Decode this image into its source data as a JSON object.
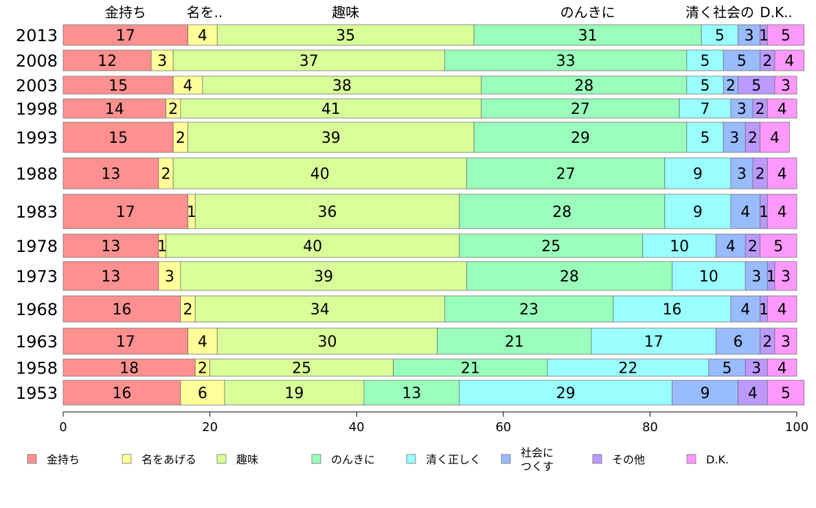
{
  "chart_data": {
    "type": "bar",
    "orientation": "horizontal",
    "stacked": true,
    "title": "",
    "xlabel": "",
    "ylabel": "",
    "xlim": [
      0,
      100
    ],
    "x_ticks": [
      "0",
      "20",
      "40",
      "60",
      "80",
      "100"
    ],
    "grid": false,
    "legend_position": "bottom",
    "categories": [
      "2013",
      "2008",
      "2003",
      "1998",
      "1993",
      "1988",
      "1983",
      "1978",
      "1973",
      "1968",
      "1963",
      "1958",
      "1953"
    ],
    "column_headers": [
      "金持ち",
      "名を..",
      "趣味",
      "",
      "のんきに",
      "",
      "清く社会の",
      "D.K.."
    ],
    "series": [
      {
        "name": "金持ち",
        "color": "#ff9090",
        "values": [
          17,
          12,
          15,
          14,
          15,
          13,
          17,
          13,
          13,
          16,
          17,
          18,
          16
        ]
      },
      {
        "name": "名をあげる",
        "color": "#ffff99",
        "values": [
          4,
          3,
          4,
          2,
          2,
          2,
          1,
          1,
          3,
          2,
          4,
          2,
          6
        ]
      },
      {
        "name": "趣味",
        "color": "#d9ff99",
        "values": [
          35,
          37,
          38,
          41,
          39,
          40,
          36,
          40,
          39,
          34,
          30,
          25,
          19
        ]
      },
      {
        "name": "のんきに",
        "color": "#99ffbb",
        "values": [
          31,
          33,
          28,
          27,
          29,
          27,
          28,
          25,
          28,
          23,
          21,
          21,
          13
        ]
      },
      {
        "name": "清く正しく",
        "color": "#99ffff",
        "values": [
          5,
          5,
          5,
          7,
          5,
          9,
          9,
          10,
          10,
          16,
          17,
          22,
          29
        ]
      },
      {
        "name": "社会につくす",
        "color": "#99bbff",
        "values": [
          3,
          5,
          2,
          3,
          3,
          3,
          4,
          4,
          3,
          4,
          6,
          5,
          9
        ]
      },
      {
        "name": "その他",
        "color": "#bb99ff",
        "values": [
          1,
          2,
          5,
          2,
          2,
          2,
          1,
          2,
          1,
          1,
          2,
          3,
          4
        ]
      },
      {
        "name": "D.K.",
        "color": "#ff99ff",
        "values": [
          5,
          4,
          3,
          4,
          4,
          4,
          4,
          5,
          3,
          4,
          3,
          4,
          5
        ]
      }
    ],
    "legend_items": [
      {
        "label": "金持ち",
        "color": "#ff9090"
      },
      {
        "label": "名をあげる",
        "color": "#ffff99"
      },
      {
        "label": "趣味",
        "color": "#d9ff99"
      },
      {
        "label": "のんきに",
        "color": "#99ffbb"
      },
      {
        "label": "清く正しく",
        "color": "#99ffff"
      },
      {
        "label": "社会に\nつくす",
        "color": "#99bbff"
      },
      {
        "label": "その他",
        "color": "#bb99ff"
      },
      {
        "label": "D.K.",
        "color": "#ff99ff"
      }
    ]
  }
}
